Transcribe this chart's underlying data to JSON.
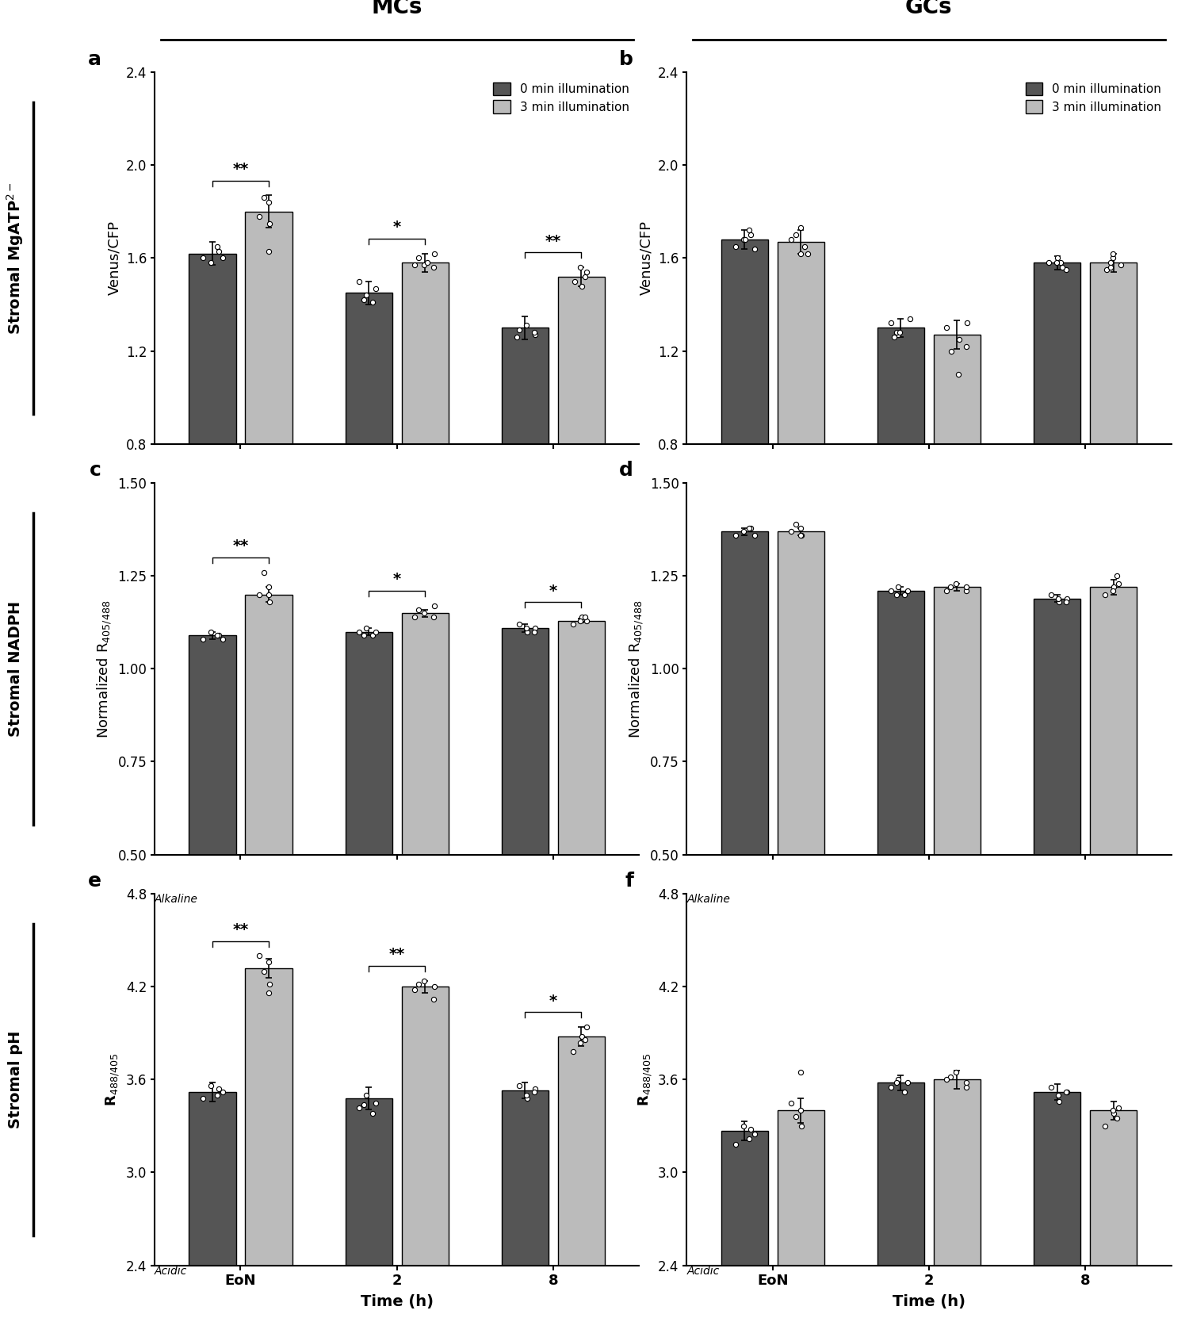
{
  "dark_color": "#555555",
  "light_color": "#bbbbbb",
  "bar_edge_color": "#000000",
  "background_color": "#ffffff",
  "panel_a": {
    "label": "a",
    "ylabel": "Venus/CFP",
    "ylim": [
      0.8,
      2.4
    ],
    "yticks": [
      0.8,
      1.2,
      1.6,
      2.0,
      2.4
    ],
    "groups": [
      "EoN",
      "2",
      "8"
    ],
    "dark_means": [
      1.62,
      1.45,
      1.3
    ],
    "light_means": [
      1.8,
      1.58,
      1.52
    ],
    "dark_err": [
      0.05,
      0.05,
      0.05
    ],
    "light_err": [
      0.07,
      0.04,
      0.04
    ],
    "dark_dots": [
      [
        1.6,
        1.63,
        1.58,
        1.65,
        1.6
      ],
      [
        1.41,
        1.47,
        1.44,
        1.5,
        1.42
      ],
      [
        1.27,
        1.29,
        1.31,
        1.28,
        1.26
      ]
    ],
    "light_dots": [
      [
        1.75,
        1.84,
        1.78,
        1.86,
        1.63
      ],
      [
        1.56,
        1.6,
        1.57,
        1.62,
        1.57,
        1.58
      ],
      [
        1.48,
        1.54,
        1.52,
        1.56,
        1.5
      ]
    ],
    "sig": [
      "**",
      "*",
      "**"
    ]
  },
  "panel_b": {
    "label": "b",
    "ylabel": "Venus/CFP",
    "ylim": [
      0.8,
      2.4
    ],
    "yticks": [
      0.8,
      1.2,
      1.6,
      2.0,
      2.4
    ],
    "groups": [
      "EoN",
      "2",
      "8"
    ],
    "dark_means": [
      1.68,
      1.3,
      1.58
    ],
    "light_means": [
      1.67,
      1.27,
      1.58
    ],
    "dark_err": [
      0.04,
      0.04,
      0.03
    ],
    "light_err": [
      0.05,
      0.06,
      0.04
    ],
    "dark_dots": [
      [
        1.65,
        1.7,
        1.68,
        1.72,
        1.64,
        1.68
      ],
      [
        1.27,
        1.32,
        1.28,
        1.34,
        1.26,
        1.28
      ],
      [
        1.55,
        1.58,
        1.6,
        1.56,
        1.58,
        1.58
      ]
    ],
    "light_dots": [
      [
        1.62,
        1.68,
        1.7,
        1.73,
        1.65,
        1.62
      ],
      [
        1.22,
        1.3,
        1.25,
        1.32,
        1.2,
        1.1
      ],
      [
        1.55,
        1.6,
        1.58,
        1.62,
        1.56,
        1.57
      ]
    ],
    "sig": [
      null,
      null,
      null
    ]
  },
  "panel_c": {
    "label": "c",
    "ylabel": "Normalized R$_{405/488}$",
    "ylim": [
      0.5,
      1.5
    ],
    "yticks": [
      0.5,
      0.75,
      1.0,
      1.25,
      1.5
    ],
    "groups": [
      "EoN",
      "2",
      "8"
    ],
    "dark_means": [
      1.09,
      1.1,
      1.11
    ],
    "light_means": [
      1.2,
      1.15,
      1.13
    ],
    "dark_err": [
      0.01,
      0.01,
      0.01
    ],
    "light_err": [
      0.02,
      0.01,
      0.005
    ],
    "dark_dots": [
      [
        1.08,
        1.09,
        1.1,
        1.09,
        1.08
      ],
      [
        1.09,
        1.1,
        1.11,
        1.1,
        1.09
      ],
      [
        1.1,
        1.11,
        1.12,
        1.11,
        1.1
      ]
    ],
    "light_dots": [
      [
        1.18,
        1.22,
        1.2,
        1.26,
        1.2
      ],
      [
        1.14,
        1.16,
        1.15,
        1.17,
        1.14
      ],
      [
        1.12,
        1.14,
        1.13,
        1.14,
        1.13
      ]
    ],
    "sig": [
      "**",
      "*",
      "*"
    ]
  },
  "panel_d": {
    "label": "d",
    "ylabel": "Normalized R$_{405/488}$",
    "ylim": [
      0.5,
      1.5
    ],
    "yticks": [
      0.5,
      0.75,
      1.0,
      1.25,
      1.5
    ],
    "groups": [
      "EoN",
      "2",
      "8"
    ],
    "dark_means": [
      1.37,
      1.21,
      1.19
    ],
    "light_means": [
      1.37,
      1.22,
      1.22
    ],
    "dark_err": [
      0.01,
      0.01,
      0.01
    ],
    "light_err": [
      0.01,
      0.01,
      0.02
    ],
    "dark_dots": [
      [
        1.36,
        1.38,
        1.37,
        1.38,
        1.36
      ],
      [
        1.2,
        1.21,
        1.22,
        1.21,
        1.2
      ],
      [
        1.18,
        1.19,
        1.2,
        1.19,
        1.18
      ]
    ],
    "light_dots": [
      [
        1.36,
        1.38,
        1.37,
        1.39,
        1.36
      ],
      [
        1.21,
        1.22,
        1.23,
        1.22,
        1.21
      ],
      [
        1.2,
        1.22,
        1.23,
        1.25,
        1.21
      ]
    ],
    "sig": [
      null,
      null,
      null
    ]
  },
  "panel_e": {
    "label": "e",
    "ylabel": "R$_{488/405}$",
    "ylim": [
      2.4,
      4.8
    ],
    "yticks": [
      2.4,
      3.0,
      3.6,
      4.2,
      4.8
    ],
    "alkaline_label": "Alkaline",
    "acidic_label": "Acidic",
    "groups": [
      "EoN",
      "2",
      "8"
    ],
    "dark_means": [
      3.52,
      3.48,
      3.53
    ],
    "light_means": [
      4.32,
      4.2,
      3.88
    ],
    "dark_err": [
      0.06,
      0.07,
      0.05
    ],
    "light_err": [
      0.06,
      0.04,
      0.06
    ],
    "dark_dots": [
      [
        3.48,
        3.54,
        3.56,
        3.5,
        3.52
      ],
      [
        3.38,
        3.45,
        3.5,
        3.42,
        3.44
      ],
      [
        3.48,
        3.54,
        3.56,
        3.5,
        3.52
      ]
    ],
    "light_dots": [
      [
        4.22,
        4.36,
        4.4,
        4.3,
        4.16
      ],
      [
        4.12,
        4.22,
        4.24,
        4.2,
        4.18
      ],
      [
        3.78,
        3.88,
        3.94,
        3.86,
        3.84
      ]
    ],
    "sig": [
      "**",
      "**",
      "*"
    ]
  },
  "panel_f": {
    "label": "f",
    "ylabel": "R$_{488/405}$",
    "ylim": [
      2.4,
      4.8
    ],
    "yticks": [
      2.4,
      3.0,
      3.6,
      4.2,
      4.8
    ],
    "alkaline_label": "Alkaline",
    "acidic_label": "Acidic",
    "groups": [
      "EoN",
      "2",
      "8"
    ],
    "dark_means": [
      3.27,
      3.58,
      3.52
    ],
    "light_means": [
      3.4,
      3.6,
      3.4
    ],
    "dark_err": [
      0.06,
      0.05,
      0.05
    ],
    "light_err": [
      0.08,
      0.06,
      0.06
    ],
    "dark_dots": [
      [
        3.18,
        3.28,
        3.3,
        3.22,
        3.25
      ],
      [
        3.52,
        3.58,
        3.6,
        3.55,
        3.58
      ],
      [
        3.46,
        3.52,
        3.55,
        3.5,
        3.52
      ]
    ],
    "light_dots": [
      [
        3.3,
        3.4,
        3.45,
        3.36,
        3.65
      ],
      [
        3.55,
        3.62,
        3.65,
        3.58,
        3.6
      ],
      [
        3.3,
        3.38,
        3.42,
        3.35,
        3.4
      ]
    ],
    "sig": [
      null,
      null,
      null
    ]
  },
  "legend_dark": "0 min illumination",
  "legend_light": "3 min illumination",
  "mc_label": "MCs",
  "gc_label": "GCs",
  "xlabel": "Time (h)",
  "row_labels": [
    "Stromal MgATP$^{2-}$",
    "Stromal NADPH",
    "Stromal pH"
  ]
}
